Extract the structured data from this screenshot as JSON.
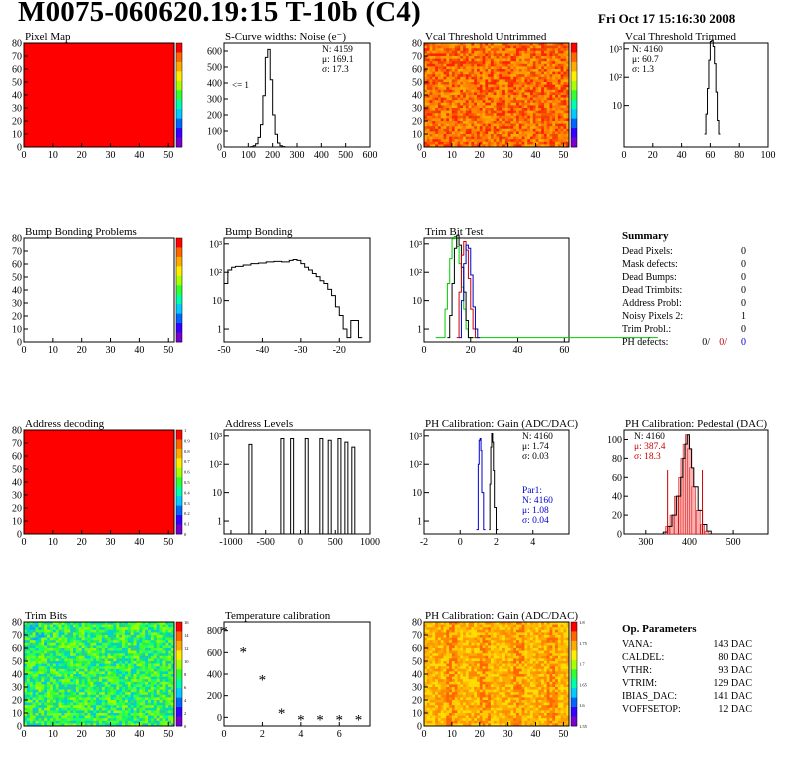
{
  "header": {
    "title": "M0075-060620.19:15 T-10b (C4)",
    "date": "Fri Oct 17 15:16:30 2008"
  },
  "colors": {
    "map_red": "#ff0000",
    "hist_line": "#000000",
    "blue_fit": "#0000cc",
    "green_fit": "#00cc00",
    "red_text": "#cc0000"
  },
  "chart_data": [
    {
      "id": "pixel-map",
      "type": "heatmap",
      "title": "Pixel Map",
      "x_ticks": [
        0,
        10,
        20,
        30,
        40,
        50
      ],
      "y_ticks": [
        0,
        10,
        20,
        30,
        40,
        50,
        60,
        70,
        80
      ],
      "xlim": [
        0,
        52
      ],
      "ylim": [
        0,
        80
      ],
      "color_scale": [
        "",
        "",
        "",
        "",
        "",
        "",
        "",
        "",
        "",
        "",
        ""
      ],
      "uniform_value": 10
    },
    {
      "id": "scurve-noise",
      "type": "line",
      "title": "S-Curve widths: Noise (e⁻)",
      "x_ticks": [
        0,
        100,
        200,
        300,
        400,
        500,
        600
      ],
      "y_ticks": [
        0,
        100,
        200,
        300,
        400,
        500,
        600
      ],
      "xlim": [
        0,
        600
      ],
      "ylim": [
        0,
        650
      ],
      "stats": [
        "N: 4159",
        "μ: 169.1",
        "σ: 17.3"
      ],
      "annotation": "<= 1",
      "x": [
        100,
        110,
        120,
        130,
        140,
        150,
        160,
        170,
        180,
        190,
        200,
        210,
        220,
        230,
        240,
        250
      ],
      "y": [
        0,
        2,
        8,
        20,
        60,
        140,
        320,
        560,
        610,
        420,
        200,
        80,
        25,
        8,
        2,
        0
      ]
    },
    {
      "id": "vcal-untrimmed",
      "type": "heatmap",
      "title": "Vcal Threshold Untrimmed",
      "x_ticks": [
        0,
        10,
        20,
        30,
        40,
        50
      ],
      "y_ticks": [
        0,
        10,
        20,
        30,
        40,
        50,
        60,
        70,
        80
      ],
      "xlim": [
        0,
        52
      ],
      "ylim": [
        0,
        80
      ],
      "color_scale": [
        "",
        "",
        "",
        "",
        "",
        "",
        ""
      ]
    },
    {
      "id": "vcal-trimmed",
      "type": "line",
      "title": "Vcal Threshold Trimmed",
      "x_ticks": [
        0,
        20,
        40,
        60,
        80,
        100
      ],
      "y_ticks_log": [
        "10",
        "10²",
        "10³"
      ],
      "xlim": [
        0,
        100
      ],
      "stats": [
        "N: 4160",
        "μ: 60.7",
        "σ:  1.3"
      ],
      "x": [
        56,
        57,
        58,
        59,
        60,
        61,
        62,
        63,
        64,
        65,
        66
      ],
      "y": [
        1,
        5,
        40,
        400,
        1800,
        2000,
        1200,
        300,
        30,
        3,
        1
      ]
    },
    {
      "id": "bump-problems",
      "type": "heatmap",
      "title": "Bump Bonding Problems",
      "x_ticks": [
        0,
        10,
        20,
        30,
        40,
        50
      ],
      "y_ticks": [
        0,
        10,
        20,
        30,
        40,
        50,
        60,
        70,
        80
      ],
      "xlim": [
        0,
        52
      ],
      "ylim": [
        0,
        80
      ],
      "color_scale": [
        "",
        "",
        "",
        "",
        "",
        "",
        "",
        "",
        "",
        "",
        ""
      ],
      "empty": true
    },
    {
      "id": "bump-bonding",
      "type": "line",
      "title": "Bump Bonding",
      "x_ticks": [
        -50,
        -40,
        -30,
        -20
      ],
      "y_ticks_log": [
        "1",
        "10",
        "10²",
        "10³"
      ],
      "xlim": [
        -50,
        -12
      ],
      "x": [
        -50,
        -49,
        -48,
        -47,
        -45,
        -43,
        -41,
        -39,
        -37,
        -35,
        -33,
        -32,
        -31,
        -30,
        -29,
        -28,
        -27,
        -26,
        -25,
        -24,
        -23,
        -22,
        -21,
        -20,
        -19,
        -18,
        -17,
        -16,
        -15
      ],
      "y": [
        40,
        120,
        150,
        160,
        180,
        200,
        210,
        230,
        240,
        230,
        260,
        280,
        260,
        200,
        150,
        120,
        90,
        70,
        50,
        40,
        25,
        15,
        6,
        3,
        1,
        0.5,
        2,
        2,
        0.5
      ]
    },
    {
      "id": "trim-bit-test",
      "type": "line",
      "title": "Trim Bit Test",
      "x_ticks": [
        0,
        20,
        40,
        60
      ],
      "y_ticks_log": [
        "1",
        "10",
        "10²",
        "10³"
      ],
      "xlim": [
        0,
        62
      ],
      "series": [
        {
          "color": "#00cc00",
          "x": [
            5,
            7,
            9,
            10,
            11,
            12,
            13,
            14,
            15,
            16,
            17,
            18,
            19,
            20,
            60
          ],
          "y": [
            0.5,
            0.5,
            5,
            40,
            300,
            1500,
            1800,
            800,
            200,
            30,
            5,
            1,
            0.5,
            0.5,
            0.5
          ]
        },
        {
          "color": "#000000",
          "x": [
            10,
            11,
            12,
            13,
            14,
            15,
            16,
            17,
            18,
            19,
            20
          ],
          "y": [
            0.5,
            3,
            40,
            700,
            2000,
            900,
            150,
            20,
            2,
            0.5,
            0.5
          ]
        },
        {
          "color": "#cc0000",
          "x": [
            14,
            15,
            16,
            17,
            18,
            19,
            20,
            21,
            22
          ],
          "y": [
            0.5,
            20,
            400,
            1200,
            600,
            60,
            5,
            1,
            0.5
          ]
        },
        {
          "color": "#0000cc",
          "x": [
            15,
            16,
            17,
            18,
            19,
            20,
            21,
            22,
            23
          ],
          "y": [
            0.5,
            10,
            200,
            900,
            700,
            80,
            6,
            1,
            0.5
          ]
        }
      ]
    },
    {
      "id": "summary",
      "type": "table",
      "title": "Summary",
      "rows": [
        {
          "label": "Dead Pixels:",
          "value": "0"
        },
        {
          "label": "Mask defects:",
          "value": "0"
        },
        {
          "label": "Dead Bumps:",
          "value": "0"
        },
        {
          "label": "Dead Trimbits:",
          "value": "0"
        },
        {
          "label": "Address Probl:",
          "value": "0"
        },
        {
          "label": "Noisy Pixels 2:",
          "value": "1"
        },
        {
          "label": "Trim Probl.:",
          "value": "0"
        }
      ],
      "ph_label": "PH defects:",
      "ph_values": [
        "0/",
        "0/",
        "0"
      ]
    },
    {
      "id": "address-decoding",
      "type": "heatmap",
      "title": "Address decoding",
      "x_ticks": [
        0,
        10,
        20,
        30,
        40,
        50
      ],
      "y_ticks": [
        0,
        10,
        20,
        30,
        40,
        50,
        60,
        70,
        80
      ],
      "xlim": [
        0,
        52
      ],
      "ylim": [
        0,
        80
      ],
      "color_scale": [
        "1",
        "0.9",
        "0.8",
        "0.7",
        "0.6",
        "0.5",
        "0.4",
        "0.3",
        "0.2",
        "0.1",
        "0"
      ],
      "uniform_value": 1
    },
    {
      "id": "address-levels",
      "type": "bar",
      "title": "Address Levels",
      "x_ticks": [
        -1000,
        -500,
        0,
        500,
        1000
      ],
      "y_ticks_log": [
        "1",
        "10",
        "10²",
        "10³"
      ],
      "xlim": [
        -1100,
        1000
      ],
      "x": [
        -720,
        -260,
        -120,
        90,
        300,
        420,
        560,
        660,
        760
      ],
      "y": [
        500,
        800,
        800,
        800,
        800,
        700,
        800,
        600,
        400
      ]
    },
    {
      "id": "ph-gain",
      "type": "line",
      "title": "PH Calibration: Gain (ADC/DAC)",
      "x_ticks": [
        -2,
        0,
        2,
        4
      ],
      "y_ticks_log": [
        "1",
        "10",
        "10²",
        "10³"
      ],
      "xlim": [
        -2,
        6
      ],
      "stats": [
        "N: 4160",
        "μ: 1.74",
        "σ: 0.03"
      ],
      "fit": [
        "Par1:",
        "N: 4160",
        "μ: 1.08",
        "σ: 0.04"
      ],
      "series": [
        {
          "color": "#0000cc",
          "x": [
            0.9,
            1.0,
            1.05,
            1.1,
            1.15,
            1.2,
            1.3
          ],
          "y": [
            0.5,
            100,
            700,
            800,
            300,
            10,
            0.5
          ]
        },
        {
          "color": "#000000",
          "x": [
            1.6,
            1.65,
            1.7,
            1.75,
            1.8,
            1.85,
            1.9,
            2.0
          ],
          "y": [
            0.5,
            20,
            400,
            1200,
            600,
            60,
            3,
            0.5
          ]
        }
      ]
    },
    {
      "id": "ph-pedestal",
      "type": "bar",
      "title": "PH Calibration: Pedestal (DAC)",
      "x_ticks": [
        300,
        400,
        500
      ],
      "y_ticks": [
        0,
        20,
        40,
        60,
        80,
        100
      ],
      "xlim": [
        250,
        580
      ],
      "ylim": [
        0,
        110
      ],
      "stats": [
        "N: 4160",
        "μ: 387.4",
        "σ: 18.3"
      ],
      "x": [
        330,
        340,
        350,
        360,
        370,
        380,
        385,
        390,
        395,
        400,
        405,
        410,
        420,
        430,
        440,
        450
      ],
      "y": [
        0,
        2,
        8,
        20,
        40,
        60,
        80,
        95,
        105,
        90,
        70,
        50,
        25,
        10,
        3,
        0
      ]
    },
    {
      "id": "trim-bits",
      "type": "heatmap",
      "title": "Trim Bits",
      "x_ticks": [
        0,
        10,
        20,
        30,
        40,
        50
      ],
      "y_ticks": [
        0,
        10,
        20,
        30,
        40,
        50,
        60,
        70,
        80
      ],
      "xlim": [
        0,
        52
      ],
      "ylim": [
        0,
        80
      ],
      "color_scale": [
        "16",
        "14",
        "12",
        "10",
        "8",
        "6",
        "4",
        "2",
        "0"
      ]
    },
    {
      "id": "temperature",
      "type": "scatter",
      "title": "Temperature calibration",
      "x_ticks": [
        0,
        2,
        4,
        6
      ],
      "y_ticks": [
        0,
        200,
        400,
        600,
        800
      ],
      "xlim": [
        0,
        7.6
      ],
      "ylim": [
        -80,
        880
      ],
      "x": [
        0,
        1,
        2,
        3,
        4,
        5,
        6,
        7
      ],
      "y": [
        800,
        610,
        350,
        40,
        -20,
        -20,
        -20,
        -20
      ]
    },
    {
      "id": "ph-gain-map",
      "type": "heatmap",
      "title": "PH Calibration: Gain (ADC/DAC)",
      "x_ticks": [
        0,
        10,
        20,
        30,
        40,
        50
      ],
      "y_ticks": [
        0,
        10,
        20,
        30,
        40,
        50,
        60,
        70,
        80
      ],
      "xlim": [
        0,
        52
      ],
      "ylim": [
        0,
        80
      ],
      "color_scale": [
        "1.8",
        "1.75",
        "1.7",
        "1.65",
        "1.6",
        "1.55"
      ]
    },
    {
      "id": "op-parameters",
      "type": "table",
      "title": "Op. Parameters",
      "rows": [
        {
          "label": "VANA:",
          "value": "143 DAC"
        },
        {
          "label": "CALDEL:",
          "value": "80 DAC"
        },
        {
          "label": "VTHR:",
          "value": "93 DAC"
        },
        {
          "label": "VTRIM:",
          "value": "129 DAC"
        },
        {
          "label": "IBIAS_DAC:",
          "value": "141 DAC"
        },
        {
          "label": "VOFFSETOP:",
          "value": "12 DAC"
        }
      ]
    }
  ]
}
